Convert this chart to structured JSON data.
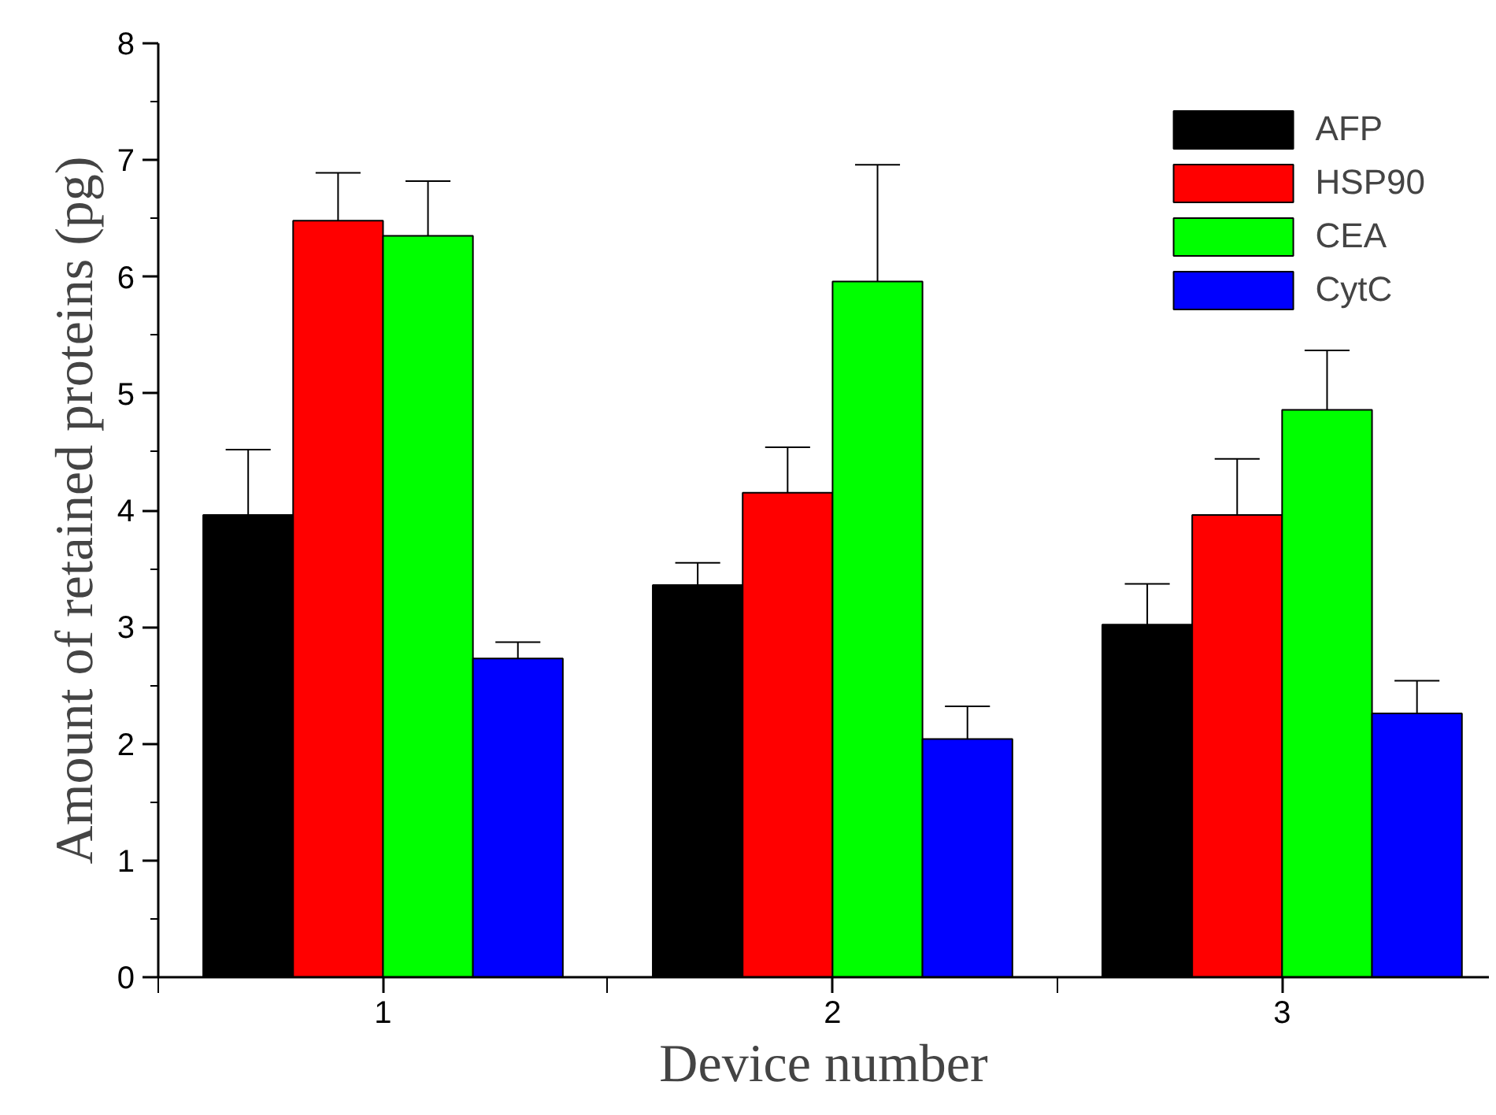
{
  "chart_data": {
    "type": "bar",
    "xlabel": "Device number",
    "ylabel": "Amount of retained proteins (pg)",
    "categories": [
      "1",
      "2",
      "3"
    ],
    "series": [
      {
        "name": "AFP",
        "color": "#000000",
        "values": [
          3.96,
          3.36,
          3.02
        ],
        "errors": [
          [
            3.96,
            4.52
          ],
          [
            3.36,
            3.55
          ],
          [
            3.02,
            3.37
          ]
        ]
      },
      {
        "name": "HSP90",
        "color": "#ff0000",
        "values": [
          6.48,
          4.15,
          3.96
        ],
        "errors": [
          [
            6.48,
            6.89
          ],
          [
            4.15,
            4.54
          ],
          [
            3.96,
            4.44
          ]
        ]
      },
      {
        "name": "CEA",
        "color": "#00ff00",
        "values": [
          6.35,
          5.96,
          4.86
        ],
        "errors": [
          [
            6.35,
            6.82
          ],
          [
            5.96,
            6.96
          ],
          [
            4.86,
            5.37
          ]
        ]
      },
      {
        "name": "CytC",
        "color": "#0000ff",
        "values": [
          2.73,
          2.04,
          2.26
        ],
        "errors": [
          [
            2.73,
            2.87
          ],
          [
            2.04,
            2.32
          ],
          [
            2.26,
            2.54
          ]
        ]
      }
    ],
    "ylim": [
      0,
      8
    ],
    "yticks": [
      0,
      1,
      2,
      3,
      4,
      5,
      6,
      7,
      8
    ],
    "grid": false,
    "legend": "top right"
  }
}
